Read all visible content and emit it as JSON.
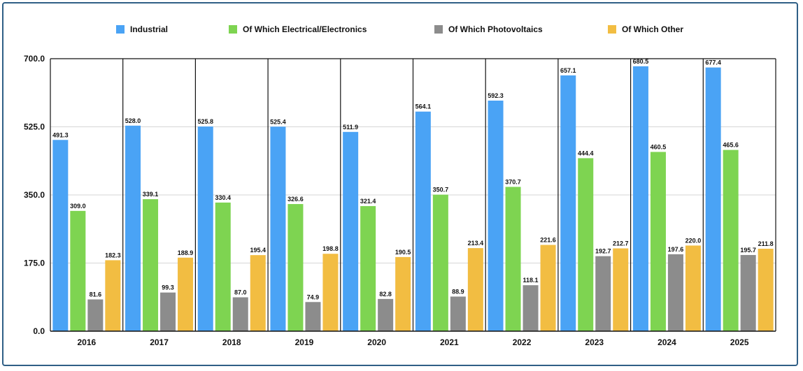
{
  "chart_data": {
    "type": "bar",
    "title": "",
    "xlabel": "",
    "ylabel": "",
    "ylim": [
      0,
      700
    ],
    "yticks": [
      "0.0",
      "175.0",
      "350.0",
      "525.0",
      "700.0"
    ],
    "ytick_values": [
      0,
      175,
      350,
      525,
      700
    ],
    "grid": true,
    "legend_position": "top",
    "categories": [
      "2016",
      "2017",
      "2018",
      "2019",
      "2020",
      "2021",
      "2022",
      "2023",
      "2024",
      "2025"
    ],
    "series": [
      {
        "name": "Industrial",
        "color": "#4aa3f5",
        "values": [
          491.3,
          528.0,
          525.8,
          525.4,
          511.9,
          564.1,
          592.3,
          657.1,
          680.5,
          677.4
        ],
        "labels": [
          "491.3",
          "528.0",
          "525.8",
          "525.4",
          "511.9",
          "564.1",
          "592.3",
          "657.1",
          "680.5",
          "677.4"
        ]
      },
      {
        "name": "Of Which Electrical/Electronics",
        "color": "#7ed451",
        "values": [
          309.0,
          339.1,
          330.4,
          326.6,
          321.4,
          350.7,
          370.7,
          444.4,
          460.5,
          465.6
        ],
        "labels": [
          "309.0",
          "339.1",
          "330.4",
          "326.6",
          "321.4",
          "350.7",
          "370.7",
          "444.4",
          "460.5",
          "465.6"
        ]
      },
      {
        "name": "Of Which Photovoltaics",
        "color": "#8c8c8c",
        "values": [
          81.6,
          99.3,
          87.0,
          74.9,
          82.8,
          88.9,
          118.1,
          192.7,
          197.6,
          195.7
        ],
        "labels": [
          "81.6",
          "99.3",
          "87.0",
          "74.9",
          "82.8",
          "88.9",
          "118.1",
          "192.7",
          "197.6",
          "195.7"
        ]
      },
      {
        "name": "Of Which Other",
        "color": "#f2bd42",
        "values": [
          182.3,
          188.9,
          195.4,
          198.8,
          190.5,
          213.4,
          221.6,
          212.7,
          220.0,
          211.8
        ],
        "labels": [
          "182.3",
          "188.9",
          "195.4",
          "198.8",
          "190.5",
          "213.4",
          "221.6",
          "212.7",
          "220.0",
          "211.8"
        ]
      }
    ]
  }
}
